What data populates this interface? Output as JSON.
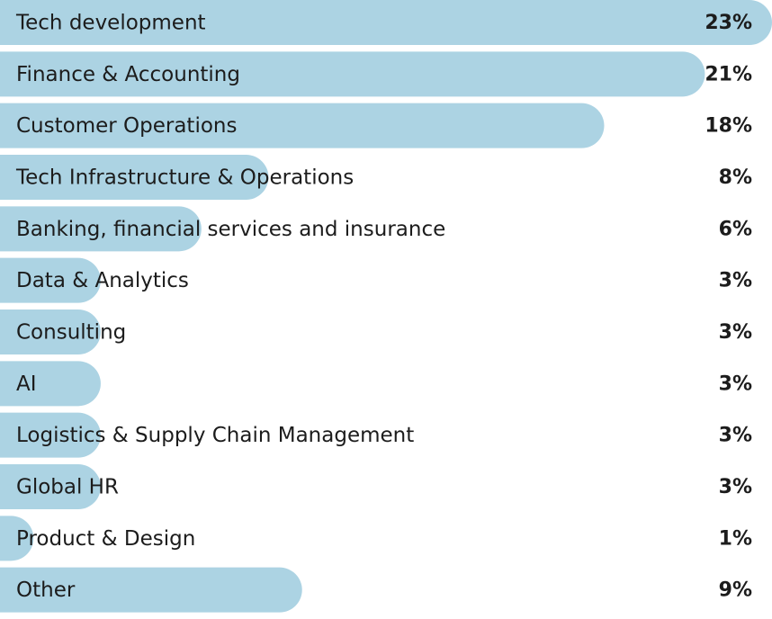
{
  "chart_data": {
    "type": "bar",
    "orientation": "horizontal",
    "categories": [
      "Tech development",
      "Finance & Accounting",
      "Customer Operations",
      "Tech Infrastructure & Operations",
      "Banking, financial services and insurance",
      "Data & Analytics",
      "Consulting",
      "AI",
      "Logistics & Supply Chain Management",
      "Global HR",
      "Product & Design",
      "Other"
    ],
    "values": [
      23,
      21,
      18,
      8,
      6,
      3,
      3,
      3,
      3,
      3,
      1,
      9
    ],
    "value_labels": [
      "23%",
      "21%",
      "18%",
      "8%",
      "6%",
      "3%",
      "3%",
      "3%",
      "3%",
      "3%",
      "1%",
      "9%"
    ],
    "color": "#acd3e3"
  }
}
